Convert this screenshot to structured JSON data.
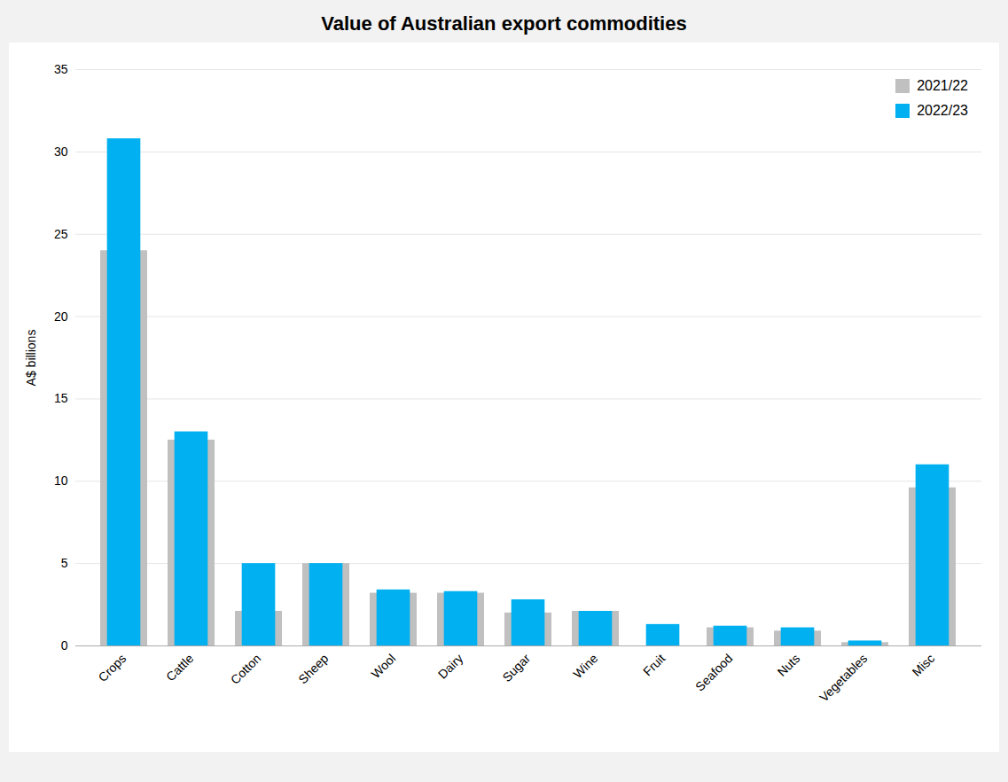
{
  "chart_data": {
    "type": "bar",
    "title": "Value of Australian export commodities",
    "ylabel": "A$ billions",
    "categories": [
      "Crops",
      "Cattle",
      "Cotton",
      "Sheep",
      "Wool",
      "Dairy",
      "Sugar",
      "Wine",
      "Fruit",
      "Seafood",
      "Nuts",
      "Vegetables",
      "Misc"
    ],
    "series": [
      {
        "name": "2021/22",
        "color": "#c0c0c0",
        "values": [
          24.0,
          12.5,
          2.1,
          5.0,
          3.2,
          3.2,
          2.0,
          2.1,
          0.0,
          1.1,
          0.9,
          0.2,
          9.6
        ]
      },
      {
        "name": "2022/23",
        "color": "#00b0f0",
        "values": [
          30.8,
          13.0,
          5.0,
          5.0,
          3.4,
          3.3,
          2.8,
          2.1,
          1.3,
          1.2,
          1.1,
          0.3,
          11.0
        ]
      }
    ],
    "ylim": [
      0,
      35
    ],
    "yticks": [
      0,
      5,
      10,
      15,
      20,
      25,
      30,
      35
    ],
    "grid": true,
    "legend": "upper right"
  }
}
